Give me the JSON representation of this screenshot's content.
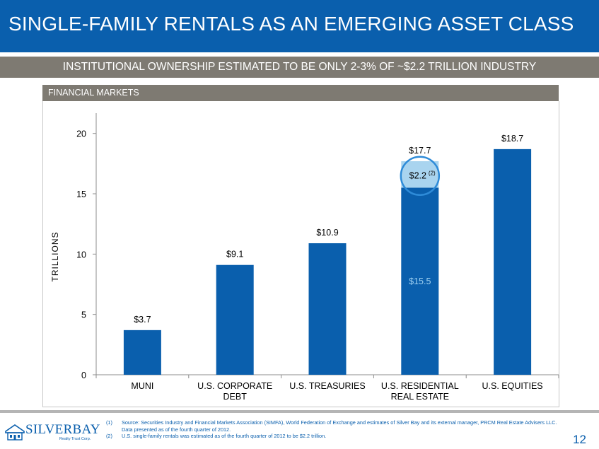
{
  "header": {
    "title": "SINGLE-FAMILY RENTALS AS AN EMERGING ASSET CLASS",
    "subtitle": "INSTITUTIONAL OWNERSHIP ESTIMATED TO BE ONLY 2-3% OF ~$2.2 TRILLION INDUSTRY"
  },
  "panel": {
    "label": "FINANCIAL MARKETS"
  },
  "colors": {
    "title_bar": "#0a5fad",
    "subtitle_bar": "#7e7a72",
    "bar": "#0a5fad",
    "highlight_segment": "#a9d4ef",
    "highlight_circle": "#2e8bd8",
    "inner_label": "#9fd1f2"
  },
  "chart_data": {
    "type": "bar",
    "stacked": true,
    "ylabel": "TRILLIONS",
    "ylim": [
      0,
      22
    ],
    "yticks": [
      "0",
      "5",
      "10",
      "15",
      "20"
    ],
    "categories": [
      [
        "MUNI"
      ],
      [
        "U.S. CORPORATE",
        "DEBT"
      ],
      [
        "U.S. TREASURIES"
      ],
      [
        "U.S. RESIDENTIAL",
        "REAL ESTATE"
      ],
      [
        "U.S. EQUITIES"
      ]
    ],
    "series": [
      {
        "values": [
          3.7,
          9.1,
          10.9,
          15.5,
          18.7
        ]
      },
      {
        "values": [
          0,
          0,
          0,
          2.2,
          0
        ]
      }
    ],
    "total_labels": [
      "$3.7",
      "$9.1",
      "$10.9",
      "$17.7",
      "$18.7"
    ],
    "inner_label": "$15.5",
    "highlight_label": "$2.2",
    "highlight_superscript": "(2)",
    "grid": false,
    "legend": "none"
  },
  "footnotes": [
    {
      "num": "(1)",
      "text": "Source: Securities Industry and Financial Markets Association (SIMFA), World Federation of Exchange and estimates of Silver Bay and its external manager, PRCM Real Estate Advisers LLC.  Data presented as of the fourth quarter of 2012."
    },
    {
      "num": "(2)",
      "text": "U.S. single-family rentals was estimated as of the fourth quarter of 2012 to be $2.2 trillion."
    }
  ],
  "logo": {
    "name": "SILVERBAY",
    "tagline": "Realty Trust Corp."
  },
  "page_number": "12"
}
